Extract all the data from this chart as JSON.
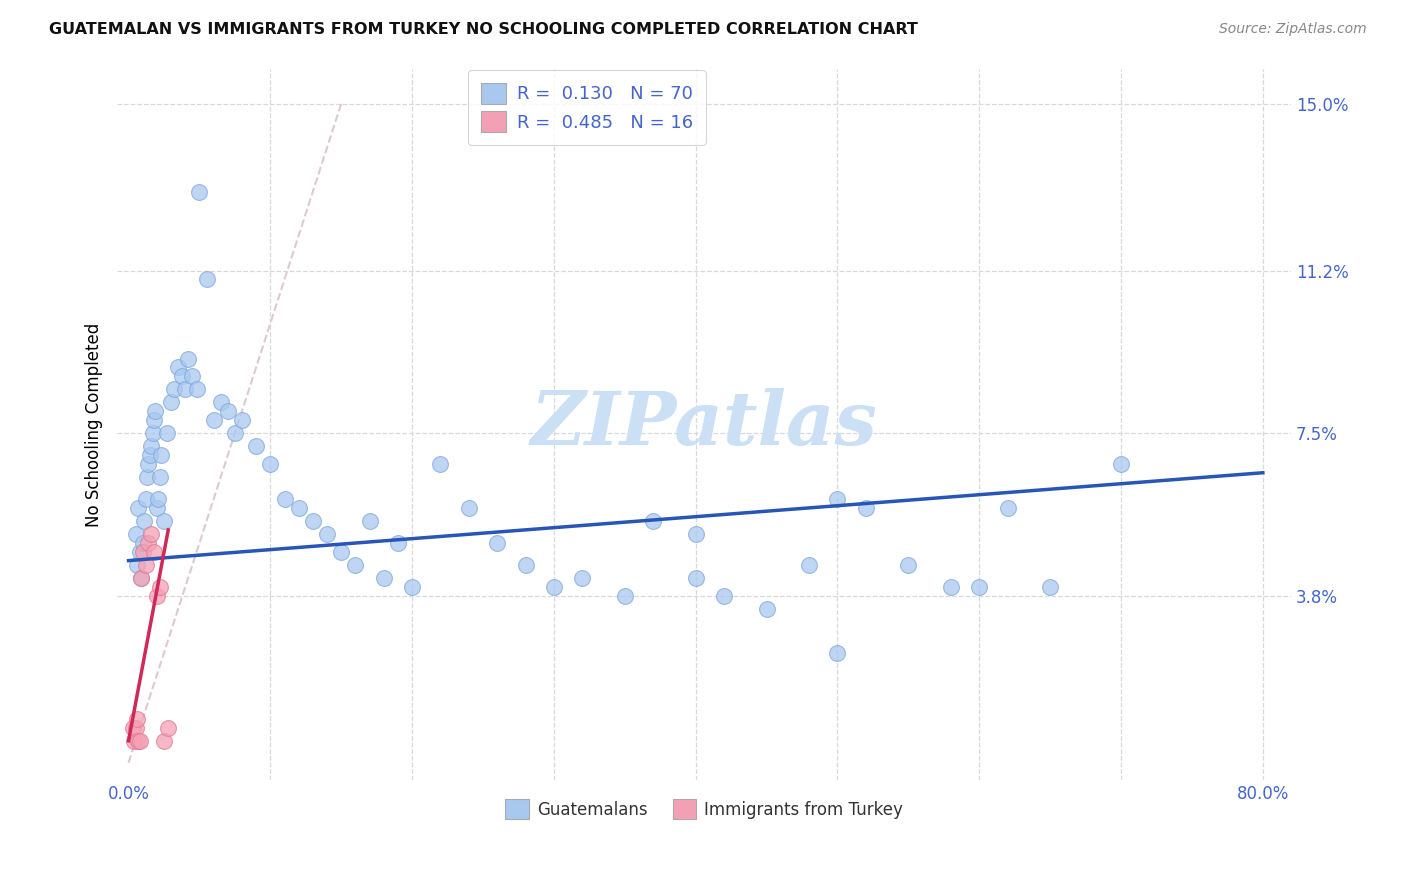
{
  "title": "GUATEMALAN VS IMMIGRANTS FROM TURKEY NO SCHOOLING COMPLETED CORRELATION CHART",
  "source": "Source: ZipAtlas.com",
  "ylabel": "No Schooling Completed",
  "xlim": [
    -0.008,
    0.82
  ],
  "ylim": [
    -0.004,
    0.158
  ],
  "xticks": [
    0.0,
    0.1,
    0.2,
    0.3,
    0.4,
    0.5,
    0.6,
    0.7,
    0.8
  ],
  "xticklabels": [
    "0.0%",
    "",
    "",
    "",
    "",
    "",
    "",
    "",
    "80.0%"
  ],
  "ytick_positions": [
    0.038,
    0.075,
    0.112,
    0.15
  ],
  "ytick_labels": [
    "3.8%",
    "7.5%",
    "11.2%",
    "15.0%"
  ],
  "R_guatemalan": 0.13,
  "N_guatemalan": 70,
  "R_turkey": 0.485,
  "N_turkey": 16,
  "color_guatemalan": "#a8c8f0",
  "color_guatemalan_edge": "#80a8d8",
  "color_turkey": "#f4a0b4",
  "color_turkey_edge": "#e07890",
  "line_color_guatemalan": "#2855b8",
  "line_color_turkey": "#d02858",
  "grid_color": "#d8d8d8",
  "tick_color": "#4466cc",
  "watermark_color": "#cce0f5",
  "guatemalan_x": [
    0.005,
    0.006,
    0.007,
    0.008,
    0.009,
    0.01,
    0.011,
    0.012,
    0.013,
    0.014,
    0.015,
    0.016,
    0.017,
    0.018,
    0.019,
    0.02,
    0.021,
    0.022,
    0.023,
    0.025,
    0.027,
    0.03,
    0.032,
    0.035,
    0.038,
    0.04,
    0.042,
    0.045,
    0.048,
    0.05,
    0.055,
    0.06,
    0.065,
    0.07,
    0.075,
    0.08,
    0.09,
    0.1,
    0.11,
    0.12,
    0.13,
    0.14,
    0.15,
    0.16,
    0.17,
    0.18,
    0.19,
    0.2,
    0.22,
    0.24,
    0.26,
    0.28,
    0.3,
    0.32,
    0.35,
    0.37,
    0.4,
    0.42,
    0.45,
    0.48,
    0.5,
    0.52,
    0.55,
    0.58,
    0.6,
    0.62,
    0.65,
    0.5,
    0.4,
    0.7
  ],
  "guatemalan_y": [
    0.052,
    0.045,
    0.058,
    0.048,
    0.042,
    0.05,
    0.055,
    0.06,
    0.065,
    0.068,
    0.07,
    0.072,
    0.075,
    0.078,
    0.08,
    0.058,
    0.06,
    0.065,
    0.07,
    0.055,
    0.075,
    0.082,
    0.085,
    0.09,
    0.088,
    0.085,
    0.092,
    0.088,
    0.085,
    0.13,
    0.11,
    0.078,
    0.082,
    0.08,
    0.075,
    0.078,
    0.072,
    0.068,
    0.06,
    0.058,
    0.055,
    0.052,
    0.048,
    0.045,
    0.055,
    0.042,
    0.05,
    0.04,
    0.068,
    0.058,
    0.05,
    0.045,
    0.04,
    0.042,
    0.038,
    0.055,
    0.042,
    0.038,
    0.035,
    0.045,
    0.06,
    0.058,
    0.045,
    0.04,
    0.04,
    0.058,
    0.04,
    0.025,
    0.052,
    0.068
  ],
  "turkey_x": [
    0.003,
    0.004,
    0.005,
    0.006,
    0.007,
    0.008,
    0.009,
    0.01,
    0.012,
    0.014,
    0.016,
    0.018,
    0.02,
    0.022,
    0.025,
    0.028
  ],
  "turkey_y": [
    0.008,
    0.005,
    0.008,
    0.01,
    0.005,
    0.005,
    0.042,
    0.048,
    0.045,
    0.05,
    0.052,
    0.048,
    0.038,
    0.04,
    0.005,
    0.008
  ],
  "blue_line_x0": 0.0,
  "blue_line_x1": 0.8,
  "blue_line_y0": 0.046,
  "blue_line_y1": 0.066,
  "pink_line_x0": 0.0,
  "pink_line_x1": 0.028,
  "pink_line_y0": 0.005,
  "pink_line_y1": 0.053
}
